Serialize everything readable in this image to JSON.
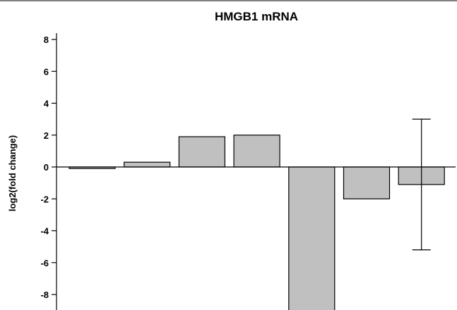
{
  "chart_data": {
    "type": "bar",
    "title": "HMGB1 mRNA",
    "xlabel": "",
    "ylabel": "log2(fold change)",
    "ylim": [
      -9,
      8.4
    ],
    "yticks": [
      8,
      6,
      4,
      2,
      0,
      -2,
      -4,
      -6,
      -8
    ],
    "grid": false,
    "legend": "none",
    "bar_color": "#c0c0c0",
    "values": [
      -0.1,
      0.3,
      1.9,
      2.0,
      -9.0,
      -2.0,
      -1.1
    ],
    "error_bars": [
      null,
      null,
      null,
      null,
      null,
      null,
      {
        "low": -5.2,
        "high": 3.0
      }
    ]
  }
}
